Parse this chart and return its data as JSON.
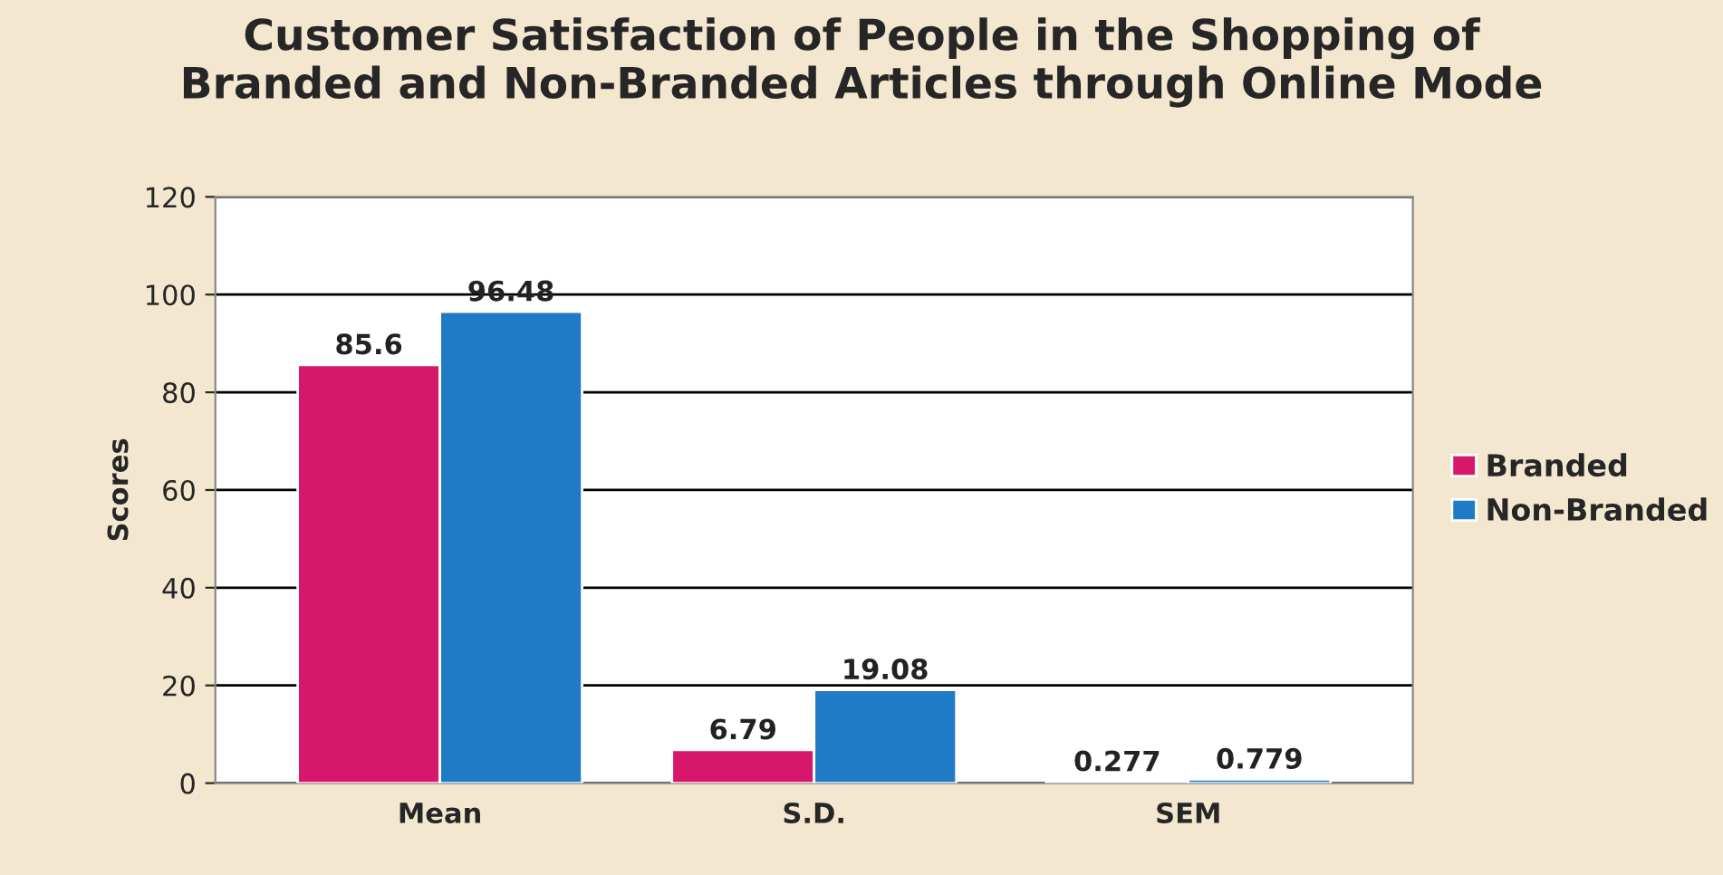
{
  "chart_data": {
    "type": "bar",
    "title": "Customer Satisfaction of People in the Shopping of\nBranded and Non-Branded Articles through Online Mode",
    "ylabel": "Scores",
    "categories": [
      "Mean",
      "S.D.",
      "SEM"
    ],
    "series": [
      {
        "name": "Branded",
        "color": "#d6176b",
        "values": [
          85.6,
          6.79,
          0.277
        ]
      },
      {
        "name": "Non-Branded",
        "color": "#1f7bc6",
        "values": [
          96.48,
          19.08,
          0.779
        ]
      }
    ],
    "ylim": [
      0,
      120
    ],
    "yticks": [
      0,
      20,
      40,
      60,
      80,
      100,
      120
    ],
    "grid": "y",
    "legend": "right",
    "data_labels": true
  }
}
